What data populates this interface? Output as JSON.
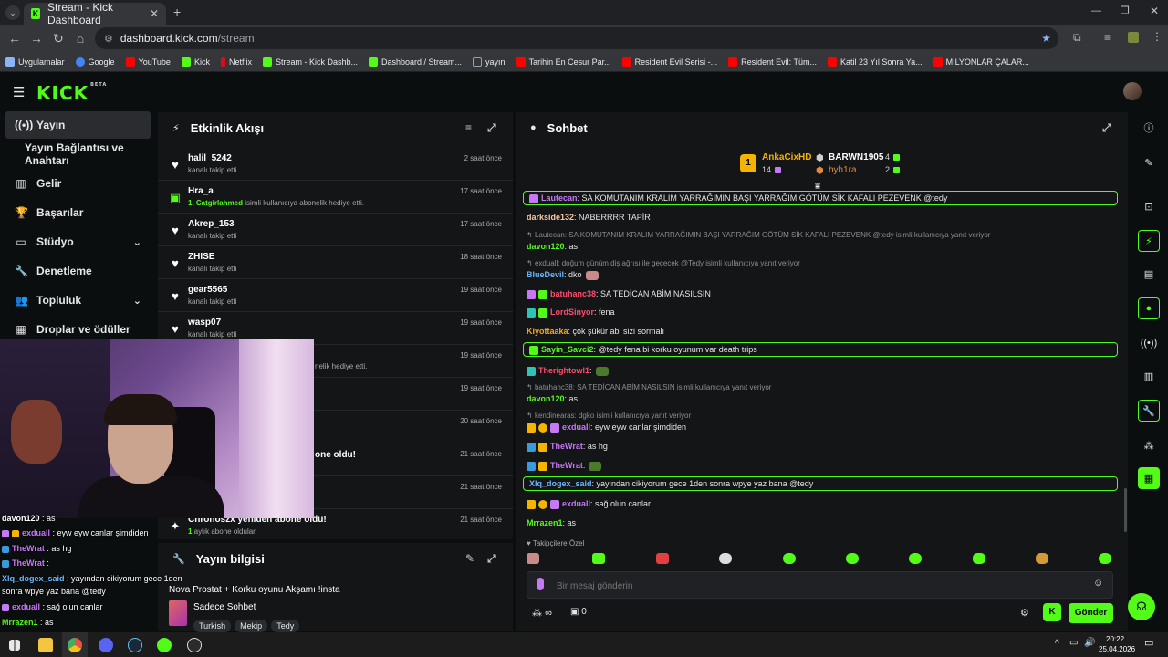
{
  "browser": {
    "tab_title": "Stream - Kick Dashboard",
    "new_tab": "+",
    "url_host": "dashboard.kick.com",
    "url_path": "/stream",
    "bookmarks": [
      {
        "label": "Uygulamalar",
        "color": "#8ab4f8"
      },
      {
        "label": "Google",
        "color": "#4285f4"
      },
      {
        "label": "YouTube",
        "color": "#ff0000"
      },
      {
        "label": "Kick",
        "color": "#53fc18"
      },
      {
        "label": "Netflix",
        "color": "#e50914"
      },
      {
        "label": "Stream - Kick Dashb...",
        "color": "#53fc18"
      },
      {
        "label": "Dashboard / Stream...",
        "color": "#53fc18"
      },
      {
        "label": "yayın",
        "color": "#9aa0a6"
      },
      {
        "label": "Tarihin En Cesur Par...",
        "color": "#ff0000"
      },
      {
        "label": "Resident Evil Serisi -...",
        "color": "#ff0000"
      },
      {
        "label": "Resident Evil: Tüm...",
        "color": "#ff0000"
      },
      {
        "label": "Katil 23 Yıl Sonra Ya...",
        "color": "#ff0000"
      },
      {
        "label": "MİLYONLAR ÇALAR...",
        "color": "#ff0000"
      }
    ]
  },
  "kick": {
    "logo": "KICK",
    "logo_badge": "BETA",
    "accent": "#53fc18"
  },
  "sidebar": {
    "items": [
      {
        "label": "Yayın",
        "icon": "broadcast-icon"
      },
      {
        "label": "Yayın Bağlantısı ve Anahtarı",
        "icon": ""
      },
      {
        "label": "Gelir",
        "icon": "chart-icon"
      },
      {
        "label": "Başarılar",
        "icon": "trophy-icon"
      },
      {
        "label": "Stüdyo",
        "icon": "studio-icon"
      },
      {
        "label": "Denetleme",
        "icon": "wrench-icon"
      },
      {
        "label": "Topluluk",
        "icon": "community-icon"
      },
      {
        "label": "Droplar ve ödüller",
        "icon": "gift-icon"
      }
    ]
  },
  "activity": {
    "title": "Etkinlik Akışı",
    "rows": [
      {
        "name": "halil_5242",
        "sub": "kanalı takip etti",
        "time": "2 saat önce",
        "icon": "heart"
      },
      {
        "name": "Hra_a",
        "sub_user": "1, Catgirlahmed",
        "sub": " isimli kullanıcıya abonelik hediye etti.",
        "time": "17 saat önce",
        "icon": "gift"
      },
      {
        "name": "Akrep_153",
        "sub": "kanalı takip etti",
        "time": "17 saat önce",
        "icon": "heart"
      },
      {
        "name": "ZHISE",
        "sub": "kanalı takip etti",
        "time": "18 saat önce",
        "icon": "heart"
      },
      {
        "name": "gear5565",
        "sub": "kanalı takip etti",
        "time": "19 saat önce",
        "icon": "heart"
      },
      {
        "name": "wasp07",
        "sub": "kanalı takip etti",
        "time": "19 saat önce",
        "icon": "heart"
      },
      {
        "name": "",
        "sub": "nelik hediye etti.",
        "time": "19 saat önce",
        "icon": "gift"
      },
      {
        "name": "",
        "sub": "",
        "time": "19 saat önce",
        "icon": "heart"
      },
      {
        "name": "",
        "sub": "",
        "time": "20 saat önce",
        "icon": "heart"
      },
      {
        "name": "one oldu!",
        "sub": "",
        "time": "21 saat önce",
        "icon": "star"
      },
      {
        "name": "",
        "sub": "",
        "time": "21 saat önce",
        "icon": "star"
      },
      {
        "name": "Chronoszx yeniden abone oldu!",
        "sub_user": "1",
        "sub": " aylık abone oldular",
        "time": "21 saat önce",
        "icon": "star"
      }
    ]
  },
  "stream_info": {
    "title": "Yayın bilgisi",
    "stream_title": "Nova Prostat + Korku oyunu Akşamı !insta",
    "category": "Sadece Sohbet",
    "tags": [
      "Turkish",
      "Mekip",
      "Tedy"
    ]
  },
  "chat": {
    "title": "Sohbet",
    "leaderboard": {
      "first": {
        "name": "AnkaCixHD",
        "count": "14",
        "rank": "1"
      },
      "second": {
        "name": "BARWN1905",
        "count": "4"
      },
      "third": {
        "name": "byh1ra",
        "count": "2"
      }
    },
    "messages": [
      {
        "type": "hl",
        "user": "Lautecan",
        "color": "#c678f5",
        "text": ": SA KOMUTANIM KRALIM YARRAĞIMIN BAŞI YARRAĞIM GÖTÜM SİK KAFALI PEZEVENK @tedy"
      },
      {
        "type": "msg",
        "user": "darkside132",
        "color": "#f8c9a0",
        "text": ": NABERRRR TAPİR"
      },
      {
        "type": "reply",
        "text": "Lautecan: SA KOMUTANIM KRALIM YARRAĞIMIN BAŞI YARRAĞIM GÖTÜM SİK KAFALI PEZEVENK @tedy isimli kullanıcıya yanıt veriyor"
      },
      {
        "type": "msg",
        "user": "davon120",
        "color": "#53fc18",
        "text": ": as"
      },
      {
        "type": "reply",
        "text": "exduall: doğum günüm diş ağrısı ile geçecek @Tedy isimli kullanıcıya yanıt veriyor"
      },
      {
        "type": "msg",
        "user": "BlueDevil",
        "color": "#6bb7ff",
        "text": ": dko"
      },
      {
        "type": "msg",
        "user": "batuhanc38",
        "color": "#ff4d6d",
        "text": ": SA TEDİCAN ABİM NASILSIN"
      },
      {
        "type": "msg",
        "user": "LordSinyor",
        "color": "#ff4d6d",
        "text": ": fena"
      },
      {
        "type": "msg",
        "user": "Kiyottaaka",
        "color": "#f5a623",
        "text": ": çok şükür abi sizi sormalı"
      },
      {
        "type": "hl",
        "user": "Sayin_Savci2",
        "color": "#53fc18",
        "text": ": @tedy fena bi korku oyunum var death trips"
      },
      {
        "type": "msg",
        "user": "Therightowl1",
        "color": "#ff4d6d",
        "text": ":"
      },
      {
        "type": "reply",
        "text": "batuhanc38: SA TEDİCAN ABİM NASILSIN isimli kullanıcıya yanıt veriyor"
      },
      {
        "type": "msg",
        "user": "davon120",
        "color": "#53fc18",
        "text": ": as"
      },
      {
        "type": "reply",
        "text": "kendinearas: dgko isimli kullanıcıya yanıt veriyor"
      },
      {
        "type": "msg",
        "user": "exduall",
        "color": "#c678f5",
        "text": ": eyw eyw canlar şimdiden"
      },
      {
        "type": "msg",
        "user": "TheWrat",
        "color": "#c678f5",
        "text": ": as hg"
      },
      {
        "type": "msg",
        "user": "TheWrat",
        "color": "#c678f5",
        "text": ":"
      },
      {
        "type": "hl",
        "user": "Xlq_dogex_said",
        "color": "#6bb7ff",
        "text": ": yayından cikiyorum gece 1den sonra wpye yaz bana @tedy"
      },
      {
        "type": "msg",
        "user": "exduall",
        "color": "#c678f5",
        "text": ": sağ olun canlar"
      },
      {
        "type": "msg",
        "user": "Mrrazen1",
        "color": "#53fc18",
        "text": ": as"
      }
    ],
    "followers_only": "Takipçilere Özel",
    "input_placeholder": "Bir mesaj gönderin",
    "points": "∞",
    "gifts": "0",
    "send_label": "Gönder"
  },
  "overlay_chat": [
    {
      "user": "davon120",
      "color": "#53fc18",
      "text": " : as"
    },
    {
      "user": "exduall",
      "color": "#c678f5",
      "text": " : eyw eyw canlar şimdiden"
    },
    {
      "user": "TheWrat",
      "color": "#c678f5",
      "text": " : as hg"
    },
    {
      "user": "TheWrat",
      "color": "#c678f5",
      "text": " :"
    },
    {
      "user": "Xlq_dogex_said",
      "color": "#6bb7ff",
      "text": " : yayından cikiyorum gece 1den"
    },
    {
      "user": "",
      "color": "#ffffff",
      "text": "sonra wpye yaz bana @tedy"
    },
    {
      "user": "exduall",
      "color": "#c678f5",
      "text": " : sağ olun canlar"
    },
    {
      "user": "Mrrazen1",
      "color": "#53fc18",
      "text": " : as"
    }
  ],
  "taskbar": {
    "time": "20:22",
    "date": "25.04.2026"
  }
}
